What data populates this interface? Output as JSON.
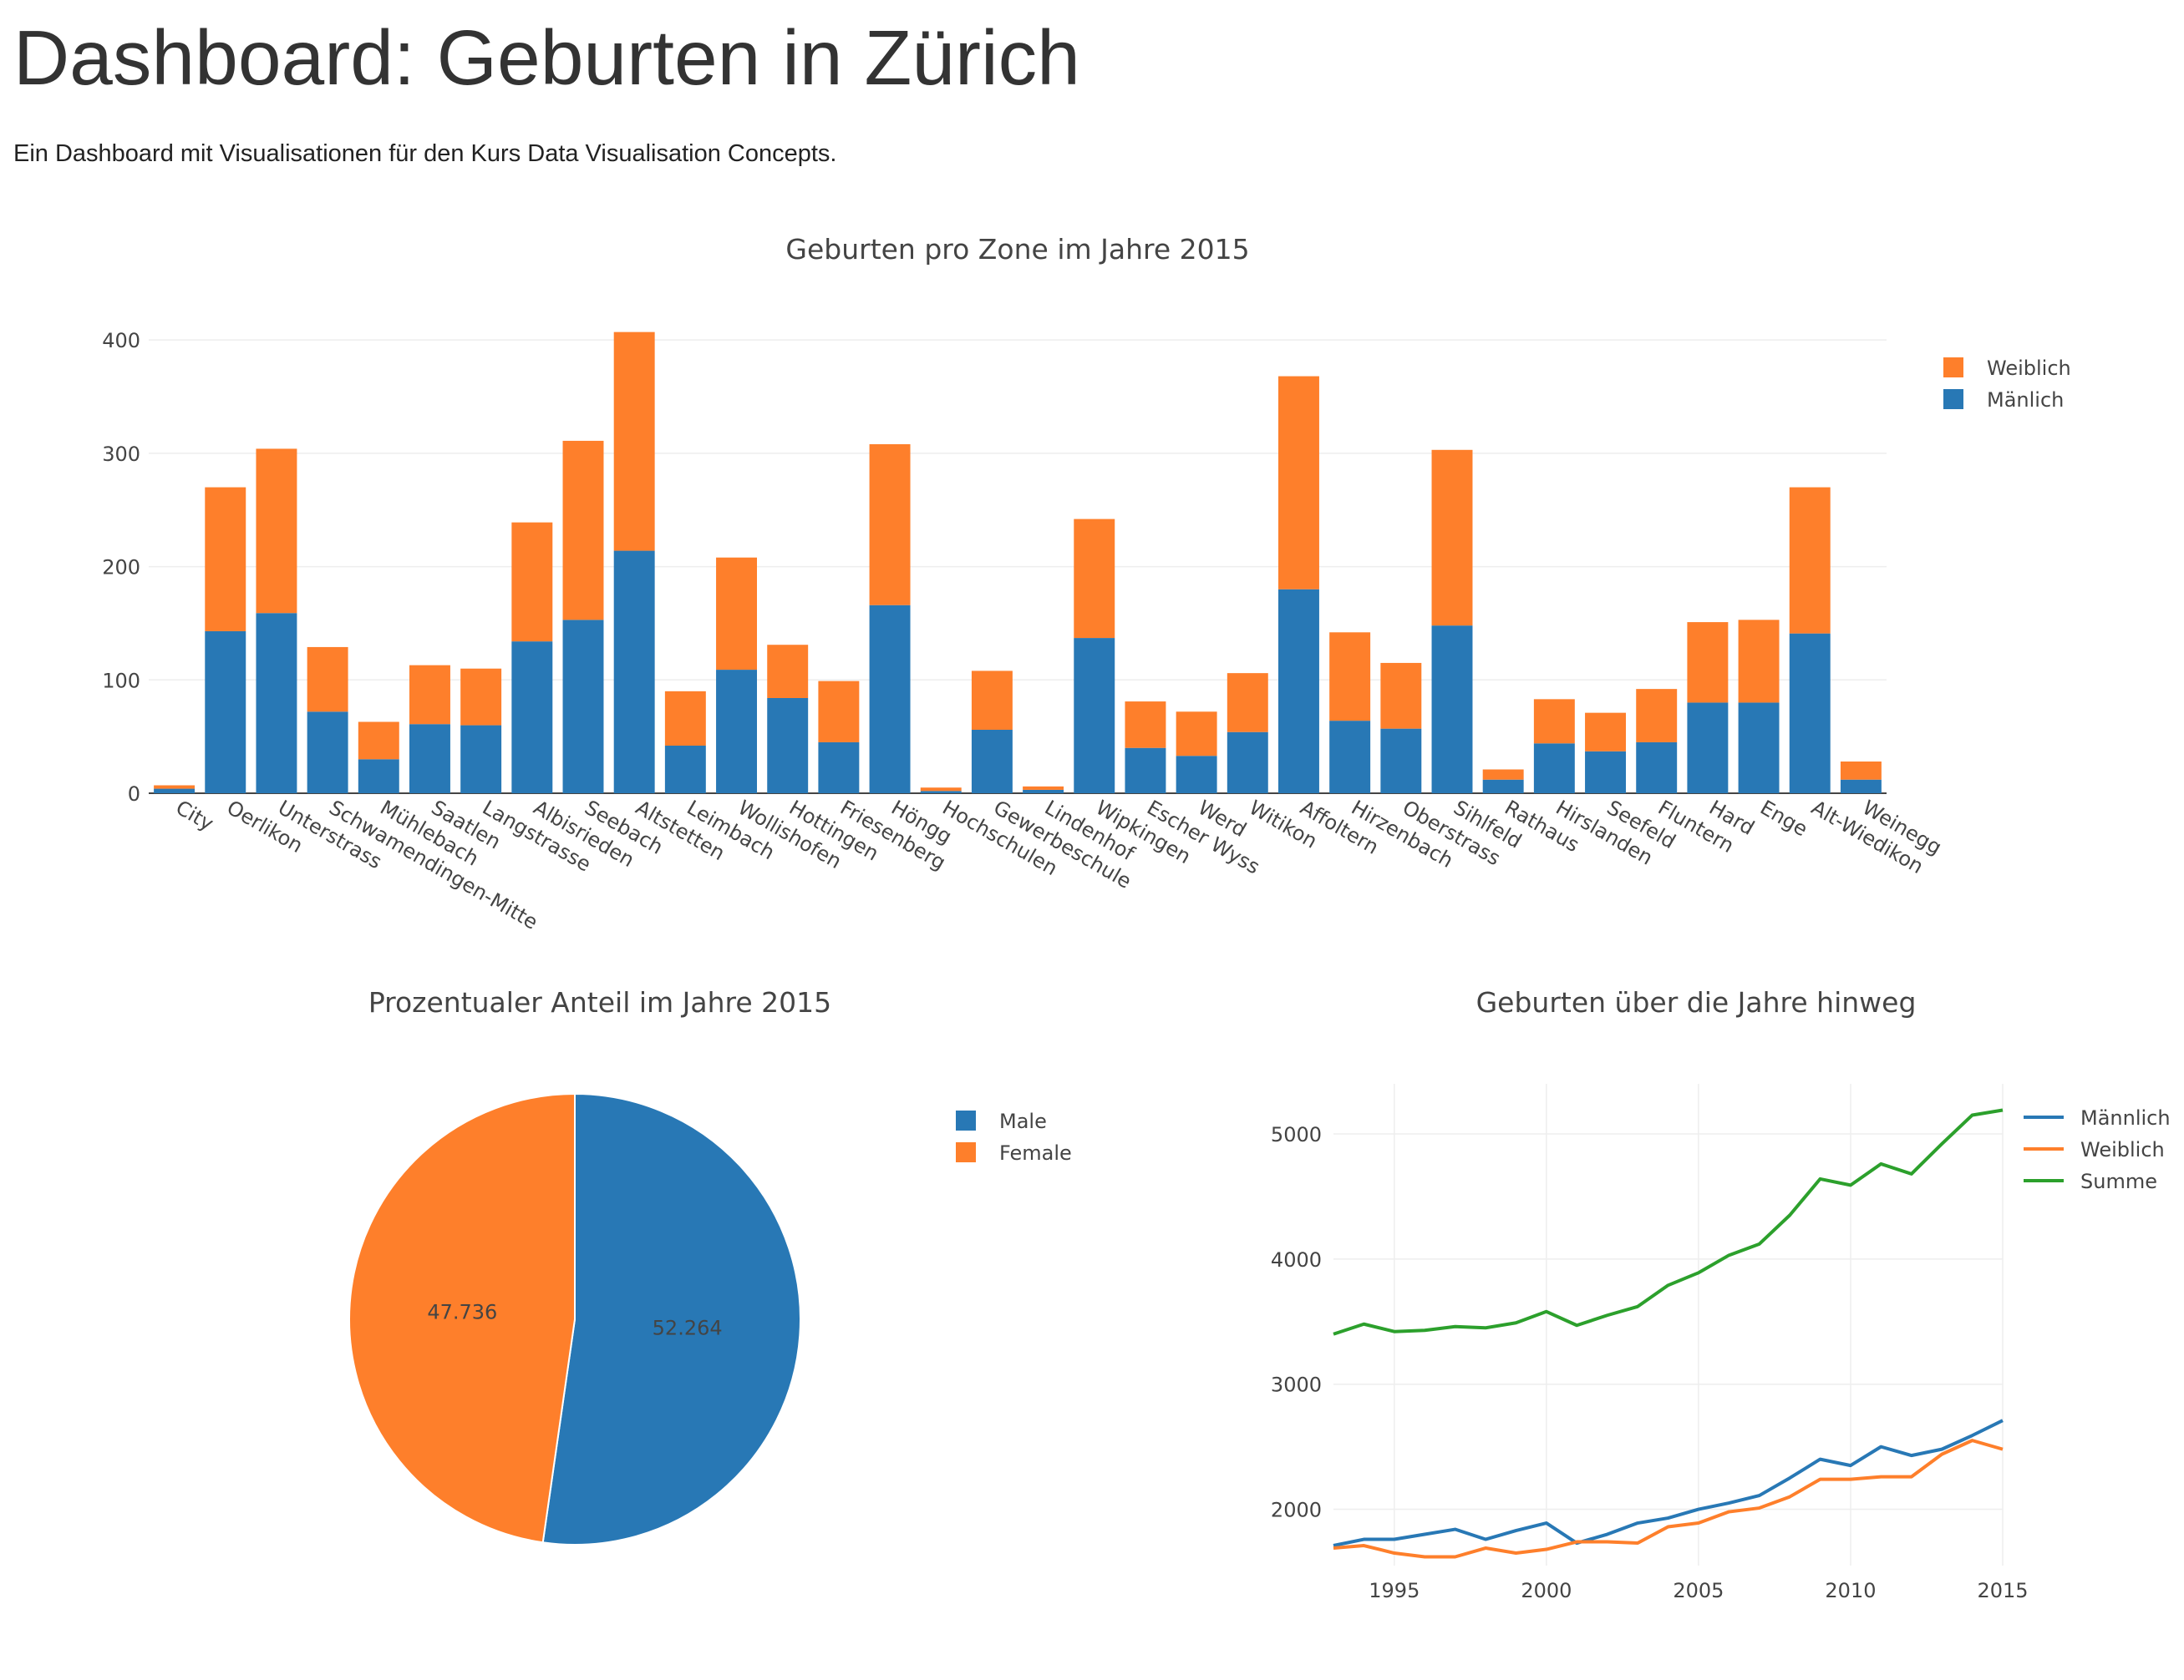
{
  "header": {
    "title": "Dashboard: Geburten in Zürich",
    "subtitle": "Ein Dashboard mit Visualisationen für den Kurs Data Visualisation Concepts."
  },
  "colors": {
    "blue": "#2878b5",
    "orange": "#fe7f2b",
    "green": "#2ca02c",
    "grid": "#eeeeee"
  },
  "chart_data": [
    {
      "type": "bar",
      "stacked": true,
      "title": "Geburten pro Zone im Jahre 2015",
      "categories": [
        "City",
        "Oerlikon",
        "Unterstrass",
        "Schwamendingen-Mitte",
        "Mühlebach",
        "Saatlen",
        "Langstrasse",
        "Albisrieden",
        "Seebach",
        "Altstetten",
        "Leimbach",
        "Wollishofen",
        "Hottingen",
        "Friesenberg",
        "Höngg",
        "Hochschulen",
        "Gewerbeschule",
        "Lindenhof",
        "Wipkingen",
        "Escher Wyss",
        "Werd",
        "Witikon",
        "Affoltern",
        "Hirzenbach",
        "Oberstrass",
        "Sihlfeld",
        "Rathaus",
        "Hirslanden",
        "Seefeld",
        "Fluntern",
        "Hard",
        "Enge",
        "Alt-Wiedikon",
        "Weinegg"
      ],
      "series": [
        {
          "name": "Mänlich",
          "values": [
            4,
            143,
            159,
            72,
            30,
            61,
            60,
            134,
            153,
            214,
            42,
            109,
            84,
            45,
            166,
            2,
            56,
            3,
            137,
            40,
            33,
            54,
            180,
            64,
            57,
            148,
            12,
            44,
            37,
            45,
            80,
            80,
            141,
            12
          ]
        },
        {
          "name": "Weiblich",
          "values": [
            3,
            127,
            145,
            57,
            33,
            52,
            50,
            105,
            158,
            193,
            48,
            99,
            47,
            54,
            142,
            3,
            52,
            3,
            105,
            41,
            39,
            52,
            188,
            78,
            58,
            155,
            9,
            39,
            34,
            47,
            71,
            73,
            129,
            16
          ]
        }
      ],
      "yticks": [
        0,
        100,
        200,
        300,
        400
      ],
      "ylim": [
        0,
        420
      ],
      "legend": "top-right"
    },
    {
      "type": "pie",
      "title": "Prozentualer Anteil im Jahre 2015",
      "labels": [
        "Male",
        "Female"
      ],
      "values": [
        52.264,
        47.736
      ],
      "legend": "top-right"
    },
    {
      "type": "line",
      "title": "Geburten über die Jahre hinweg",
      "x": [
        1993,
        1994,
        1995,
        1996,
        1997,
        1998,
        1999,
        2000,
        2001,
        2002,
        2003,
        2004,
        2005,
        2006,
        2007,
        2008,
        2009,
        2010,
        2011,
        2012,
        2013,
        2014,
        2015
      ],
      "series": [
        {
          "name": "Männlich",
          "values": [
            1710,
            1760,
            1760,
            1800,
            1840,
            1760,
            1830,
            1890,
            1730,
            1800,
            1890,
            1930,
            2000,
            2050,
            2110,
            2250,
            2400,
            2350,
            2500,
            2430,
            2480,
            2590,
            2710
          ]
        },
        {
          "name": "Weiblich",
          "values": [
            1690,
            1710,
            1650,
            1620,
            1620,
            1690,
            1650,
            1680,
            1740,
            1740,
            1730,
            1860,
            1890,
            1980,
            2010,
            2100,
            2240,
            2240,
            2260,
            2260,
            2440,
            2550,
            2480
          ]
        },
        {
          "name": "Summe",
          "values": [
            3400,
            3480,
            3420,
            3430,
            3460,
            3450,
            3490,
            3580,
            3470,
            3550,
            3620,
            3790,
            3890,
            4030,
            4120,
            4350,
            4640,
            4590,
            4760,
            4680,
            4920,
            5150,
            5190
          ]
        }
      ],
      "xticks": [
        1995,
        2000,
        2005,
        2010,
        2015
      ],
      "yticks": [
        2000,
        3000,
        4000,
        5000
      ],
      "xlim": [
        1993,
        2015
      ],
      "ylim": [
        1550,
        5400
      ],
      "legend": "top-right"
    }
  ]
}
